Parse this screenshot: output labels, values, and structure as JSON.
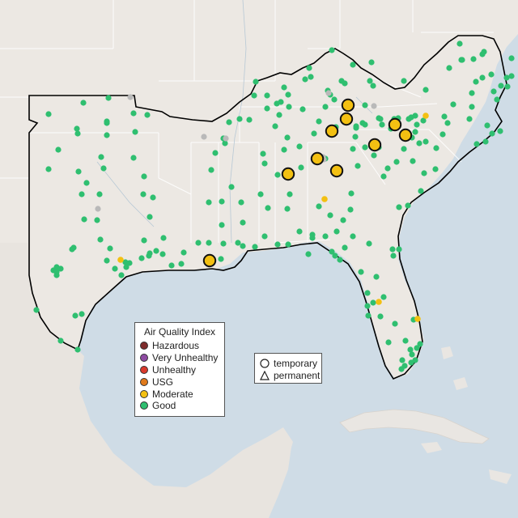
{
  "map": {
    "legend_aqi": {
      "title": "Air Quality Index",
      "levels": [
        {
          "label": "Hazardous",
          "color": "#7e2b2b"
        },
        {
          "label": "Very Unhealthy",
          "color": "#8e4ba2"
        },
        {
          "label": "Unhealthy",
          "color": "#d93a2c"
        },
        {
          "label": "USG",
          "color": "#e07a1b"
        },
        {
          "label": "Moderate",
          "color": "#f3c012"
        },
        {
          "label": "Good",
          "color": "#2fbf70"
        }
      ]
    },
    "legend_type": {
      "items": [
        {
          "label": "temporary",
          "shape": "circle"
        },
        {
          "label": "permanent",
          "shape": "triangle"
        }
      ]
    },
    "colors": {
      "water": "#cfdce6",
      "land": "#ece8e3",
      "land_outside": "#e9e6e2",
      "region_border": "#000000",
      "state_border": "#ffffff",
      "no_data": "#b9b9b9"
    }
  }
}
